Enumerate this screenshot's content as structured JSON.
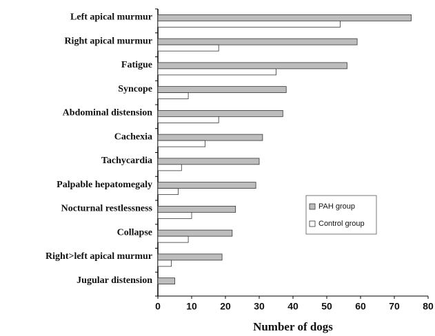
{
  "chart_data": {
    "type": "hbar",
    "xlabel": "Number of dogs",
    "categories": [
      "Left apical murmur",
      "Right apical murmur",
      "Fatigue",
      "Syncope",
      "Abdominal distension",
      "Cachexia",
      "Tachycardia",
      "Palpable hepatomegaly",
      "Nocturnal restlessness",
      "Collapse",
      "Right>left apical murmur",
      "Jugular distension"
    ],
    "series": [
      {
        "name": "PAH group",
        "color": "#bdbdbd",
        "values": [
          75,
          59,
          56,
          38,
          37,
          31,
          30,
          29,
          23,
          22,
          19,
          5
        ]
      },
      {
        "name": "Control group",
        "color": "#ffffff",
        "values": [
          54,
          18,
          35,
          9,
          18,
          14,
          7,
          6,
          10,
          9,
          4,
          0
        ]
      }
    ],
    "xlim": [
      0,
      80
    ],
    "xticks": [
      0,
      10,
      20,
      30,
      40,
      50,
      60,
      70,
      80
    ]
  }
}
